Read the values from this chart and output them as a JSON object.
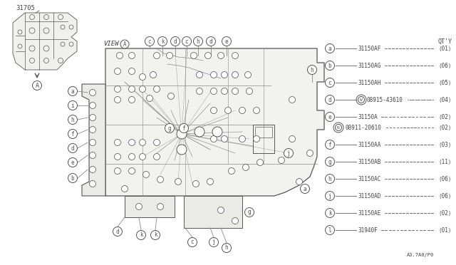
{
  "bg_color": "#ffffff",
  "line_color": "#888888",
  "dark_color": "#555555",
  "text_color": "#444444",
  "title_part": "31705",
  "view_label": "VIEW",
  "fig_code": "A3.7A0/P0",
  "qty_label": "QT'Y",
  "legend_items": [
    {
      "letter": "a",
      "part": "31150AF",
      "qty": "01"
    },
    {
      "letter": "b",
      "part": "31150AG",
      "qty": "06"
    },
    {
      "letter": "c",
      "part": "31150AH",
      "qty": "05"
    },
    {
      "letter": "d",
      "note": "W",
      "part": "08915-43610",
      "qty": "04"
    },
    {
      "letter": "e",
      "part": "31150A",
      "qty": "02",
      "sub_note": "N",
      "sub_part": "08911-20610",
      "sub_qty": "02"
    },
    {
      "letter": "f",
      "part": "31150AA",
      "qty": "03"
    },
    {
      "letter": "g",
      "part": "31150AB",
      "qty": "11"
    },
    {
      "letter": "h",
      "part": "31150AC",
      "qty": "06"
    },
    {
      "letter": "j",
      "part": "31150AD",
      "qty": "06"
    },
    {
      "letter": "k",
      "part": "31150AE",
      "qty": "02"
    },
    {
      "letter": "l",
      "part": "31940F",
      "qty": "01"
    }
  ]
}
